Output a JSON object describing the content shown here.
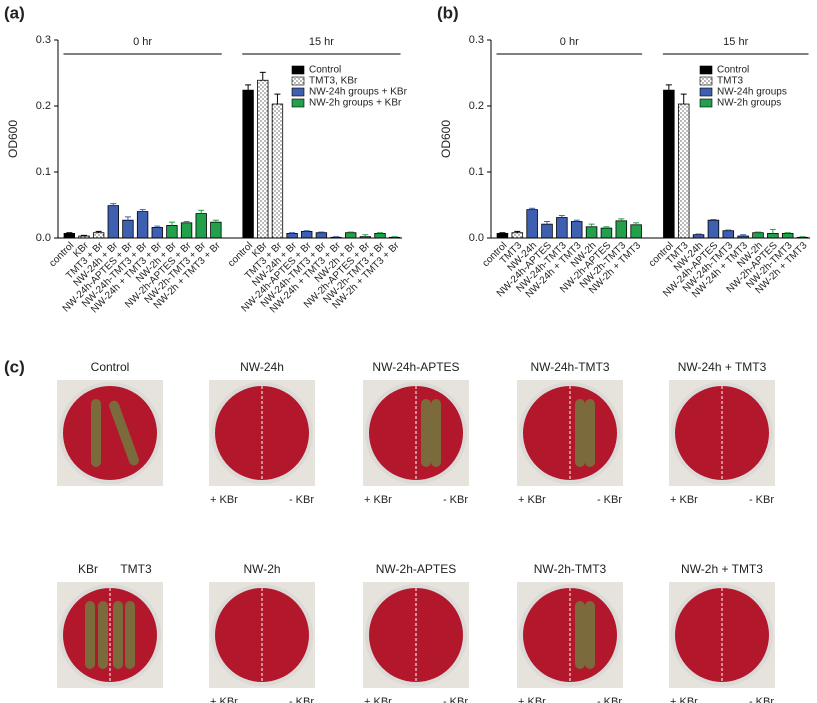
{
  "chart_data": [
    {
      "type": "bar",
      "label": "(a)",
      "y_label": "OD600",
      "categories": [
        "control",
        "KBr",
        "TMT3 + Br",
        "NW-24h + Br",
        "NW-24h-APTES + Br",
        "NW-24h-TMT3 + Br",
        "NW-24h + TMT3 + Br",
        "NW-2h + Br",
        "NW-2h-APTES + Br",
        "NW-2h-TMT3 + Br",
        "NW-2h + TMT3 + Br",
        "control",
        "KBr",
        "TMT3 + Br",
        "NW-24h + Br",
        "NW-24h-APTES + Br",
        "NW-24h-TMT3 + Br",
        "NW-24h + TMT3 + Br",
        "NW-2h + Br",
        "NW-2h-APTES + Br",
        "NW-2h-TMT3 + Br",
        "NW-2h + TMT3 + Br"
      ],
      "annotations": [
        "0 hr",
        "15 hr"
      ],
      "series": [
        {
          "name": "Control",
          "color": "#000000",
          "values": [
            0.007,
            null,
            null,
            null,
            null,
            null,
            null,
            null,
            null,
            null,
            null,
            0.224,
            null,
            null,
            null,
            null,
            null,
            null,
            null,
            null,
            null,
            null
          ],
          "errors": [
            0.001,
            null,
            null,
            null,
            null,
            null,
            null,
            null,
            null,
            null,
            null,
            0.008,
            null,
            null,
            null,
            null,
            null,
            null,
            null,
            null,
            null,
            null
          ]
        },
        {
          "name": "TMT3, KBr",
          "color": "#ffffff",
          "pattern": "dots",
          "values": [
            null,
            0.003,
            0.008,
            null,
            null,
            null,
            null,
            null,
            null,
            null,
            null,
            null,
            0.239,
            0.203,
            null,
            null,
            null,
            null,
            null,
            null,
            null,
            null
          ],
          "errors": [
            null,
            0.001,
            0.002,
            null,
            null,
            null,
            null,
            null,
            null,
            null,
            null,
            null,
            0.012,
            0.015,
            null,
            null,
            null,
            null,
            null,
            null,
            null,
            null
          ]
        },
        {
          "name": "NW-24h groups + KBr",
          "color": "#3f5fb0",
          "values": [
            null,
            null,
            null,
            0.049,
            0.027,
            0.04,
            0.016,
            null,
            null,
            null,
            null,
            null,
            null,
            null,
            0.007,
            0.01,
            0.008,
            0.001,
            null,
            null,
            null,
            null
          ],
          "errors": [
            null,
            null,
            null,
            0.003,
            0.005,
            0.003,
            0.002,
            null,
            null,
            null,
            null,
            null,
            null,
            null,
            0.001,
            0.001,
            0.001,
            0.001,
            null,
            null,
            null,
            null
          ]
        },
        {
          "name": "NW-2h groups + KBr",
          "color": "#22a04b",
          "values": [
            null,
            null,
            null,
            null,
            null,
            null,
            null,
            0.019,
            0.023,
            0.037,
            0.024,
            null,
            null,
            null,
            null,
            null,
            null,
            null,
            0.008,
            0.002,
            0.007,
            0.001
          ],
          "errors": [
            null,
            null,
            null,
            null,
            null,
            null,
            null,
            0.005,
            0.002,
            0.005,
            0.003,
            null,
            null,
            null,
            null,
            null,
            null,
            null,
            0.001,
            0.003,
            0.001,
            0.001
          ]
        }
      ],
      "ylim": [
        0,
        0.3
      ],
      "yticks": [
        {
          "value": 0,
          "label": "0.0"
        },
        0.1,
        0.2,
        0.3
      ],
      "legend": "upper right"
    },
    {
      "type": "bar",
      "label": "(b)",
      "y_label": "OD600",
      "categories": [
        "control",
        "TMT3",
        "NW-24h",
        "NW-24h-APTES",
        "NW-24h-TMT3",
        "NW-24h + TMT3",
        "NW-2h",
        "NW-2h-APTES",
        "NW-2h-TMT3",
        "NW-2h + TMT3",
        "control",
        "TMT3",
        "NW-24h",
        "NW-24h-APTES",
        "NW-24h-TMT3",
        "NW-24h + TMT3",
        "NW-2h",
        "NW-2h-APTES",
        "NW-2h-TMT3",
        "NW-2h + TMT3"
      ],
      "annotations": [
        "0 hr",
        "15 hr"
      ],
      "series": [
        {
          "name": "Control",
          "color": "#000000",
          "values": [
            0.007,
            null,
            null,
            null,
            null,
            null,
            null,
            null,
            null,
            null,
            0.224,
            null,
            null,
            null,
            null,
            null,
            null,
            null,
            null,
            null
          ],
          "errors": [
            0.001,
            null,
            null,
            null,
            null,
            null,
            null,
            null,
            null,
            null,
            0.008,
            null,
            null,
            null,
            null,
            null,
            null,
            null,
            null,
            null
          ]
        },
        {
          "name": "TMT3",
          "color": "#ffffff",
          "pattern": "dots",
          "values": [
            null,
            0.008,
            null,
            null,
            null,
            null,
            null,
            null,
            null,
            null,
            null,
            0.203,
            null,
            null,
            null,
            null,
            null,
            null,
            null,
            null
          ],
          "errors": [
            null,
            0.002,
            null,
            null,
            null,
            null,
            null,
            null,
            null,
            null,
            null,
            0.015,
            null,
            null,
            null,
            null,
            null,
            null,
            null,
            null
          ]
        },
        {
          "name": "NW-24h groups",
          "color": "#3f5fb0",
          "values": [
            null,
            null,
            0.043,
            0.021,
            0.031,
            0.025,
            null,
            null,
            null,
            null,
            null,
            null,
            0.005,
            0.027,
            0.011,
            0.003,
            null,
            null,
            null,
            null
          ],
          "errors": [
            null,
            null,
            0.002,
            0.004,
            0.003,
            0.002,
            null,
            null,
            null,
            null,
            null,
            null,
            0.001,
            0.001,
            0.001,
            0.002,
            null,
            null,
            null,
            null
          ]
        },
        {
          "name": "NW-2h groups",
          "color": "#22a04b",
          "values": [
            null,
            null,
            null,
            null,
            null,
            null,
            0.017,
            0.015,
            0.026,
            0.02,
            null,
            null,
            null,
            null,
            null,
            null,
            0.008,
            0.007,
            0.007,
            0.001
          ],
          "errors": [
            null,
            null,
            null,
            null,
            null,
            null,
            0.004,
            0.002,
            0.003,
            0.003,
            null,
            null,
            null,
            null,
            null,
            null,
            0.001,
            0.006,
            0.001,
            0.001
          ]
        }
      ],
      "ylim": [
        0,
        0.3
      ],
      "yticks": [
        {
          "value": 0,
          "label": "0.0"
        },
        0.1,
        0.2,
        0.3
      ],
      "legend": "upper right"
    }
  ],
  "panel_c": {
    "label": "(c)",
    "plates": [
      {
        "title": "Control"
      },
      {
        "title": "NW-24h",
        "left": "+ KBr",
        "right": "- KBr"
      },
      {
        "title": "NW-24h-APTES",
        "left": "+ KBr",
        "right": "- KBr"
      },
      {
        "title": "NW-24h-TMT3",
        "left": "+ KBr",
        "right": "- KBr"
      },
      {
        "title": "NW-24h + TMT3",
        "left": "+ KBr",
        "right": "- KBr"
      },
      {
        "title_left": "KBr",
        "title_right": "TMT3"
      },
      {
        "title": "NW-2h",
        "left": "+ KBr",
        "right": "- KBr"
      },
      {
        "title": "NW-2h-APTES",
        "left": "+ KBr",
        "right": "- KBr"
      },
      {
        "title": "NW-2h-TMT3",
        "left": "+ KBr",
        "right": "- KBr"
      },
      {
        "title": "NW-2h + TMT3",
        "left": "+ KBr",
        "right": "- KBr"
      }
    ]
  }
}
